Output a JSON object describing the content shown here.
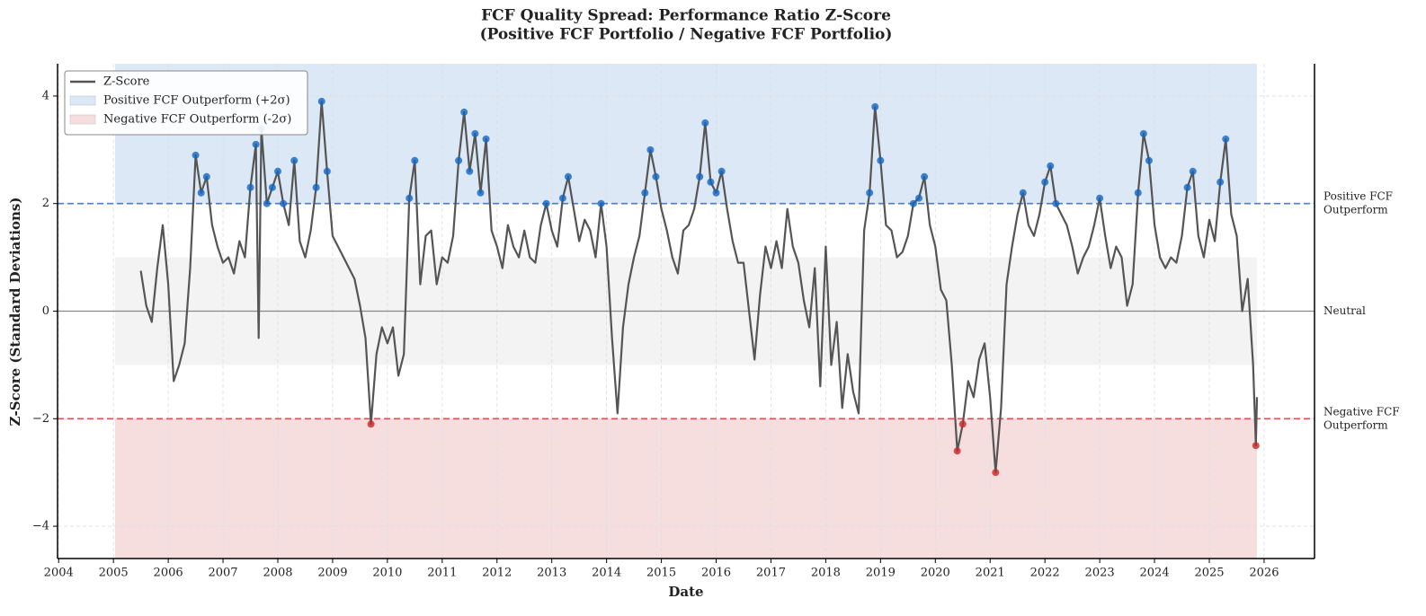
{
  "chart_data": {
    "type": "line",
    "title_lines": [
      "FCF Quality Spread: Performance Ratio Z-Score",
      "(Positive FCF Portfolio / Negative FCF Portfolio)"
    ],
    "x_label": "Date",
    "y_label": "Z-Score (Standard Deviations)",
    "xlim": [
      2003.98,
      2026.92
    ],
    "ylim": [
      -4.6,
      4.6
    ],
    "xticks": [
      2004,
      2005,
      2006,
      2007,
      2008,
      2009,
      2010,
      2011,
      2012,
      2013,
      2014,
      2015,
      2016,
      2017,
      2018,
      2019,
      2020,
      2021,
      2022,
      2023,
      2024,
      2025,
      2026
    ],
    "yticks": [
      {
        "value": -4,
        "label": "−4"
      },
      {
        "value": -2,
        "label": "−2"
      },
      0,
      2,
      4
    ],
    "grid": true,
    "legend": "upper left",
    "high_threshold": 2,
    "low_threshold": -2,
    "high_color": "#1565c0",
    "low_color": "#c62828",
    "bands": [
      {
        "name": "Positive FCF Outperform (+2σ)",
        "x": [
          2005.03,
          2025.87
        ],
        "y": [
          2,
          4.6
        ],
        "color": "#dce8f6"
      },
      {
        "x": [
          2005.03,
          2025.87
        ],
        "y": [
          -1,
          1
        ],
        "color": "#f3f3f3"
      },
      {
        "name": "Negative FCF Outperform (-2σ)",
        "x": [
          2005.03,
          2025.87
        ],
        "y": [
          -4.6,
          -2
        ],
        "color": "#f7dede"
      }
    ],
    "reference_lines": [
      {
        "value": 2,
        "label_lines": [
          "Positive FCF",
          "Outperform"
        ],
        "color": "#4a7fc1",
        "dashed": true
      },
      {
        "value": 0,
        "label_lines": [
          "Neutral"
        ],
        "color": "#888888",
        "dashed": false
      },
      {
        "value": -2,
        "label_lines": [
          "Negative FCF",
          "Outperform"
        ],
        "color": "#d9534f",
        "dashed": true
      }
    ],
    "series": [
      {
        "name": "Z-Score",
        "color": "#555555",
        "x": [
          2005.5,
          2005.6,
          2005.7,
          2005.8,
          2005.9,
          2006.0,
          2006.1,
          2006.2,
          2006.3,
          2006.4,
          2006.5,
          2006.6,
          2006.7,
          2006.8,
          2006.9,
          2007.0,
          2007.1,
          2007.2,
          2007.3,
          2007.4,
          2007.5,
          2007.6,
          2007.65,
          2007.7,
          2007.8,
          2007.9,
          2008.0,
          2008.1,
          2008.2,
          2008.3,
          2008.4,
          2008.5,
          2008.6,
          2008.7,
          2008.8,
          2008.9,
          2009.0,
          2009.1,
          2009.2,
          2009.3,
          2009.4,
          2009.5,
          2009.6,
          2009.7,
          2009.8,
          2009.9,
          2010.0,
          2010.1,
          2010.2,
          2010.3,
          2010.4,
          2010.5,
          2010.6,
          2010.7,
          2010.8,
          2010.9,
          2011.0,
          2011.1,
          2011.2,
          2011.3,
          2011.4,
          2011.5,
          2011.6,
          2011.7,
          2011.8,
          2011.9,
          2012.0,
          2012.1,
          2012.2,
          2012.3,
          2012.4,
          2012.5,
          2012.6,
          2012.7,
          2012.8,
          2012.9,
          2013.0,
          2013.1,
          2013.2,
          2013.3,
          2013.4,
          2013.5,
          2013.6,
          2013.7,
          2013.8,
          2013.9,
          2014.0,
          2014.1,
          2014.2,
          2014.3,
          2014.4,
          2014.5,
          2014.6,
          2014.7,
          2014.8,
          2014.9,
          2015.0,
          2015.1,
          2015.2,
          2015.3,
          2015.4,
          2015.5,
          2015.6,
          2015.7,
          2015.8,
          2015.9,
          2016.0,
          2016.1,
          2016.2,
          2016.3,
          2016.4,
          2016.5,
          2016.6,
          2016.7,
          2016.8,
          2016.9,
          2017.0,
          2017.1,
          2017.2,
          2017.3,
          2017.4,
          2017.5,
          2017.6,
          2017.7,
          2017.8,
          2017.9,
          2018.0,
          2018.1,
          2018.2,
          2018.3,
          2018.4,
          2018.5,
          2018.6,
          2018.7,
          2018.8,
          2018.9,
          2019.0,
          2019.1,
          2019.2,
          2019.3,
          2019.4,
          2019.5,
          2019.6,
          2019.7,
          2019.8,
          2019.9,
          2020.0,
          2020.1,
          2020.2,
          2020.3,
          2020.4,
          2020.5,
          2020.6,
          2020.7,
          2020.8,
          2020.9,
          2021.0,
          2021.1,
          2021.2,
          2021.3,
          2021.4,
          2021.5,
          2021.6,
          2021.7,
          2021.8,
          2021.9,
          2022.0,
          2022.1,
          2022.2,
          2022.3,
          2022.4,
          2022.5,
          2022.6,
          2022.7,
          2022.8,
          2022.9,
          2023.0,
          2023.1,
          2023.2,
          2023.3,
          2023.4,
          2023.5,
          2023.6,
          2023.7,
          2023.8,
          2023.9,
          2024.0,
          2024.1,
          2024.2,
          2024.3,
          2024.4,
          2024.5,
          2024.6,
          2024.7,
          2024.8,
          2024.9,
          2025.0,
          2025.1,
          2025.2,
          2025.3,
          2025.4,
          2025.5,
          2025.6,
          2025.7,
          2025.8,
          2025.85,
          2025.87
        ],
        "values": [
          0.75,
          0.1,
          -0.2,
          0.8,
          1.6,
          0.5,
          -1.3,
          -1.0,
          -0.6,
          0.8,
          2.9,
          2.2,
          2.5,
          1.6,
          1.2,
          0.9,
          1.0,
          0.7,
          1.3,
          1.0,
          2.3,
          3.1,
          -0.5,
          3.4,
          2.0,
          2.3,
          2.6,
          2.0,
          1.6,
          2.8,
          1.3,
          1.0,
          1.5,
          2.3,
          3.9,
          2.6,
          1.4,
          1.2,
          1.0,
          0.8,
          0.6,
          0.1,
          -0.5,
          -2.1,
          -0.8,
          -0.3,
          -0.6,
          -0.3,
          -1.2,
          -0.8,
          2.1,
          2.8,
          0.5,
          1.4,
          1.5,
          0.5,
          1.0,
          0.9,
          1.4,
          2.8,
          3.7,
          2.6,
          3.3,
          2.2,
          3.2,
          1.5,
          1.2,
          0.8,
          1.6,
          1.2,
          1.0,
          1.5,
          1.0,
          0.9,
          1.6,
          2.0,
          1.5,
          1.2,
          2.1,
          2.5,
          1.9,
          1.3,
          1.7,
          1.5,
          1.0,
          2.0,
          1.2,
          -0.5,
          -1.9,
          -0.3,
          0.5,
          1.0,
          1.4,
          2.2,
          3.0,
          2.5,
          1.9,
          1.5,
          1.0,
          0.7,
          1.5,
          1.6,
          1.9,
          2.5,
          3.5,
          2.4,
          2.2,
          2.6,
          1.9,
          1.3,
          0.9,
          0.9,
          0.0,
          -0.9,
          0.3,
          1.2,
          0.8,
          1.3,
          0.8,
          1.9,
          1.2,
          0.9,
          0.2,
          -0.3,
          0.8,
          -1.4,
          1.2,
          -1.0,
          -0.2,
          -1.8,
          -0.8,
          -1.5,
          -1.9,
          1.5,
          2.2,
          3.8,
          2.8,
          1.6,
          1.5,
          1.0,
          1.1,
          1.4,
          2.0,
          2.1,
          2.5,
          1.6,
          1.2,
          0.4,
          0.2,
          -1.0,
          -2.6,
          -2.1,
          -1.3,
          -1.6,
          -0.9,
          -0.6,
          -1.6,
          -3.0,
          -1.8,
          0.5,
          1.2,
          1.8,
          2.2,
          1.6,
          1.4,
          1.8,
          2.4,
          2.7,
          2.0,
          1.8,
          1.6,
          1.2,
          0.7,
          1.0,
          1.2,
          1.6,
          2.1,
          1.4,
          0.8,
          1.2,
          1.0,
          0.1,
          0.5,
          2.2,
          3.3,
          2.8,
          1.6,
          1.0,
          0.8,
          1.0,
          0.9,
          1.4,
          2.3,
          2.6,
          1.4,
          1.0,
          1.7,
          1.3,
          2.4,
          3.2,
          1.8,
          1.4,
          0.0,
          0.6,
          -1.0,
          -2.5,
          -1.6
        ]
      }
    ]
  }
}
